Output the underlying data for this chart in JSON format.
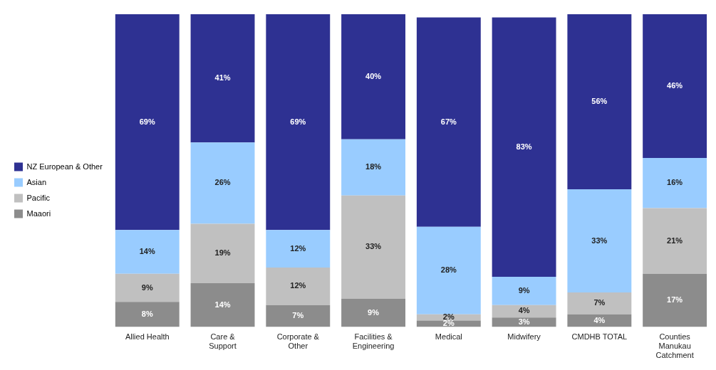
{
  "chart_data": {
    "type": "bar",
    "stacked": true,
    "legend": "left",
    "grid": false,
    "categories": [
      "Allied Health",
      "Care & Support",
      "Corporate & Other",
      "Facilities & Engineering",
      "Medical",
      "Midwifery",
      "CMDHB TOTAL",
      "Counties Manukau Catchment"
    ],
    "series": [
      {
        "name": "Maaori",
        "color": "#8c8c8c",
        "values": [
          8,
          14,
          7,
          9,
          2,
          3,
          4,
          17
        ],
        "value_labels": [
          "8%",
          "14%",
          "7%",
          "9%",
          "2%",
          "3%",
          "4%",
          "17%"
        ]
      },
      {
        "name": "Pacific",
        "color": "#c0c0c0",
        "values": [
          9,
          19,
          12,
          33,
          2,
          4,
          7,
          21
        ],
        "value_labels": [
          "9%",
          "19%",
          "12%",
          "33%",
          "2%",
          "4%",
          "7%",
          "21%"
        ]
      },
      {
        "name": "Asian",
        "color": "#99ccff",
        "values": [
          14,
          26,
          12,
          18,
          28,
          9,
          33,
          16
        ],
        "value_labels": [
          "14%",
          "26%",
          "12%",
          "18%",
          "28%",
          "9%",
          "33%",
          "16%"
        ]
      },
      {
        "name": "NZ European & Other",
        "color": "#2e3192",
        "values": [
          69,
          41,
          69,
          40,
          67,
          83,
          56,
          46
        ],
        "value_labels": [
          "69%",
          "41%",
          "69%",
          "40%",
          "67%",
          "83%",
          "56%",
          "46%"
        ]
      }
    ]
  }
}
